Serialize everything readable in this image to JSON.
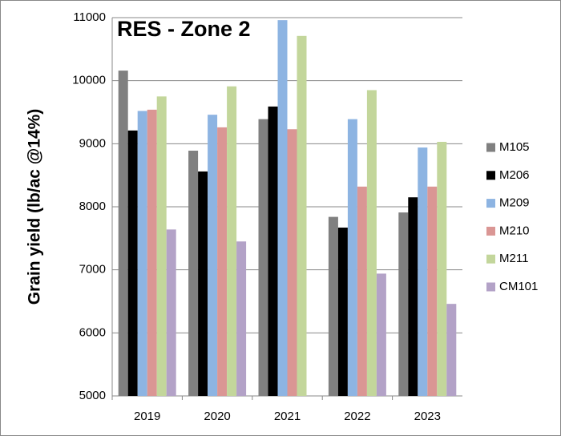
{
  "chart_data": {
    "type": "bar",
    "title": "RES - Zone 2",
    "y_label": "Grain yield (lb/ac @14%)",
    "categories": [
      "2019",
      "2020",
      "2021",
      "2022",
      "2023"
    ],
    "series": [
      {
        "name": "M105",
        "color": "#808080",
        "values": [
          10160,
          8890,
          9390,
          7840,
          7910
        ]
      },
      {
        "name": "M206",
        "color": "#000000",
        "values": [
          9210,
          8560,
          9590,
          7670,
          8150
        ]
      },
      {
        "name": "M209",
        "color": "#8db4e2",
        "values": [
          9520,
          9460,
          10960,
          9390,
          8940
        ]
      },
      {
        "name": "M210",
        "color": "#da9694",
        "values": [
          9540,
          9260,
          9230,
          8320,
          8320
        ]
      },
      {
        "name": "M211",
        "color": "#c3d69b",
        "values": [
          9750,
          9910,
          10710,
          9850,
          9030
        ]
      },
      {
        "name": "CM101",
        "color": "#b3a2c7",
        "values": [
          7640,
          7450,
          null,
          6940,
          6460
        ]
      }
    ],
    "ylim": [
      5000,
      11000
    ],
    "yticks": [
      5000,
      6000,
      7000,
      8000,
      9000,
      10000,
      11000
    ],
    "grid": true,
    "legend": "right"
  }
}
